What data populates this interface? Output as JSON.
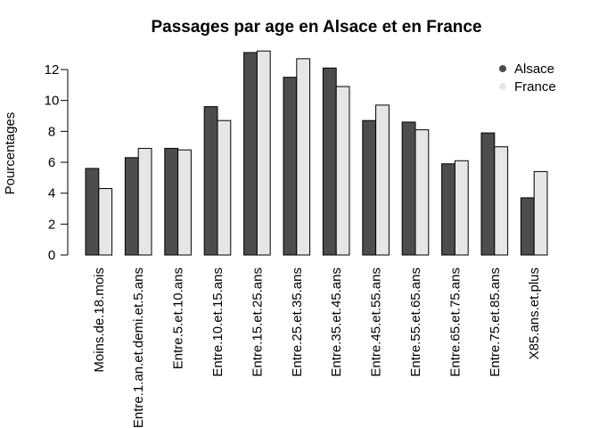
{
  "chart_data": {
    "type": "bar",
    "title": "Passages par age en Alsace et en France",
    "xlabel": "",
    "ylabel": "Pourcentages",
    "ylim": [
      0,
      13.2
    ],
    "yticks": [
      0,
      2,
      4,
      6,
      8,
      10,
      12
    ],
    "grid": false,
    "legend_position": "top-right",
    "categories": [
      "Moins.de.18.mois",
      "Entre.1.an.et.demi.et.5.ans",
      "Entre.5.et.10.ans",
      "Entre.10.et.15.ans",
      "Entre.15.et.25.ans",
      "Entre.25.et.35.ans",
      "Entre.35.et.45.ans",
      "Entre.45.et.55.ans",
      "Entre.55.et.65.ans",
      "Entre.65.et.75.ans",
      "Entre.75.et.85.ans",
      "X85.ans.et.plus"
    ],
    "series": [
      {
        "name": "Alsace",
        "color": "#4d4d4d",
        "values": [
          5.6,
          6.3,
          6.9,
          9.6,
          13.1,
          11.5,
          12.1,
          8.7,
          8.6,
          5.9,
          7.9,
          3.7
        ]
      },
      {
        "name": "France",
        "color": "#e6e6e6",
        "values": [
          4.3,
          6.9,
          6.8,
          8.7,
          13.2,
          12.7,
          10.9,
          9.7,
          8.1,
          6.1,
          7.0,
          5.4
        ]
      }
    ]
  }
}
